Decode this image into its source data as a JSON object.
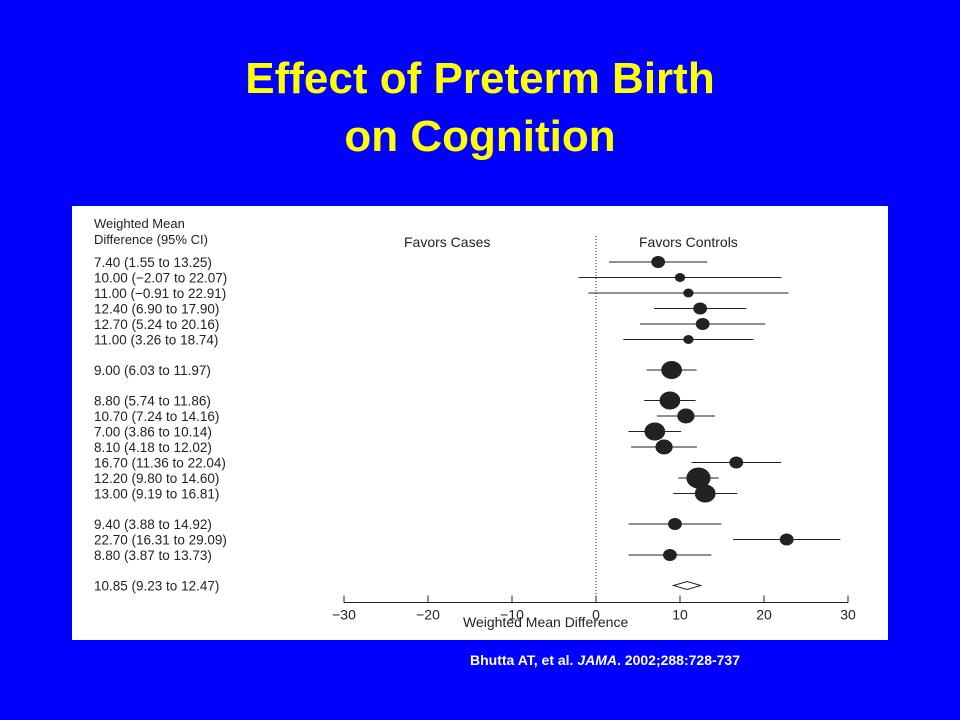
{
  "slide": {
    "title_line1": "Effect of Preterm Birth",
    "title_line2": "on Cognition",
    "citation_prefix": "Bhutta AT, et al. ",
    "citation_journal": "JAMA",
    "citation_suffix": ". 2002;288:728-737"
  },
  "colors": {
    "background": "#0000ff",
    "title": "#ffff00",
    "citation": "#ffffff",
    "plot_ink": "#222222"
  },
  "chart_data": {
    "type": "forest",
    "column_header_line1": "Weighted Mean",
    "column_header_line2": "Difference (95% CI)",
    "favors_left": "Favors Cases",
    "favors_right": "Favors Controls",
    "xlabel": "Weighted Mean Difference",
    "xlim": [
      -30,
      30
    ],
    "xticks": [
      -30,
      -20,
      -10,
      0,
      10,
      20,
      30
    ],
    "xtick_labels": [
      "−30",
      "−20",
      "−10",
      "0",
      "10",
      "20",
      "30"
    ],
    "groups": [
      {
        "rows": [
          {
            "label": "7.40 (1.55 to 13.25)",
            "est": 7.4,
            "lo": 1.55,
            "hi": 13.25,
            "weight": 2
          },
          {
            "label": "10.00 (−2.07 to 22.07)",
            "est": 10.0,
            "lo": -2.07,
            "hi": 22.07,
            "weight": 1
          },
          {
            "label": "11.00 (−0.91 to 22.91)",
            "est": 11.0,
            "lo": -0.91,
            "hi": 22.91,
            "weight": 1
          },
          {
            "label": "12.40 (6.90 to 17.90)",
            "est": 12.4,
            "lo": 6.9,
            "hi": 17.9,
            "weight": 2
          },
          {
            "label": "12.70 (5.24 to 20.16)",
            "est": 12.7,
            "lo": 5.24,
            "hi": 20.16,
            "weight": 2
          },
          {
            "label": "11.00 (3.26 to 18.74)",
            "est": 11.0,
            "lo": 3.26,
            "hi": 18.74,
            "weight": 1
          }
        ]
      },
      {
        "rows": [
          {
            "label": "9.00 (6.03 to 11.97)",
            "est": 9.0,
            "lo": 6.03,
            "hi": 11.97,
            "weight": 4
          }
        ]
      },
      {
        "rows": [
          {
            "label": "8.80 (5.74 to 11.86)",
            "est": 8.8,
            "lo": 5.74,
            "hi": 11.86,
            "weight": 4
          },
          {
            "label": "10.70 (7.24 to 14.16)",
            "est": 10.7,
            "lo": 7.24,
            "hi": 14.16,
            "weight": 3
          },
          {
            "label": "7.00 (3.86 to 10.14)",
            "est": 7.0,
            "lo": 3.86,
            "hi": 10.14,
            "weight": 4
          },
          {
            "label": "8.10 (4.18 to 12.02)",
            "est": 8.1,
            "lo": 4.18,
            "hi": 12.02,
            "weight": 3
          },
          {
            "label": "16.70 (11.36 to 22.04)",
            "est": 16.7,
            "lo": 11.36,
            "hi": 22.04,
            "weight": 2
          },
          {
            "label": "12.20 (9.80 to 14.60)",
            "est": 12.2,
            "lo": 9.8,
            "hi": 14.6,
            "weight": 5
          },
          {
            "label": "13.00 (9.19 to 16.81)",
            "est": 13.0,
            "lo": 9.19,
            "hi": 16.81,
            "weight": 4
          }
        ]
      },
      {
        "rows": [
          {
            "label": "9.40 (3.88 to 14.92)",
            "est": 9.4,
            "lo": 3.88,
            "hi": 14.92,
            "weight": 2
          },
          {
            "label": "22.70 (16.31 to 29.09)",
            "est": 22.7,
            "lo": 16.31,
            "hi": 29.09,
            "weight": 2
          },
          {
            "label": "8.80 (3.87 to 13.73)",
            "est": 8.8,
            "lo": 3.87,
            "hi": 13.73,
            "weight": 2
          }
        ]
      }
    ],
    "pooled": {
      "label": "10.85 (9.23 to 12.47)",
      "est": 10.85,
      "lo": 9.23,
      "hi": 12.47
    }
  }
}
